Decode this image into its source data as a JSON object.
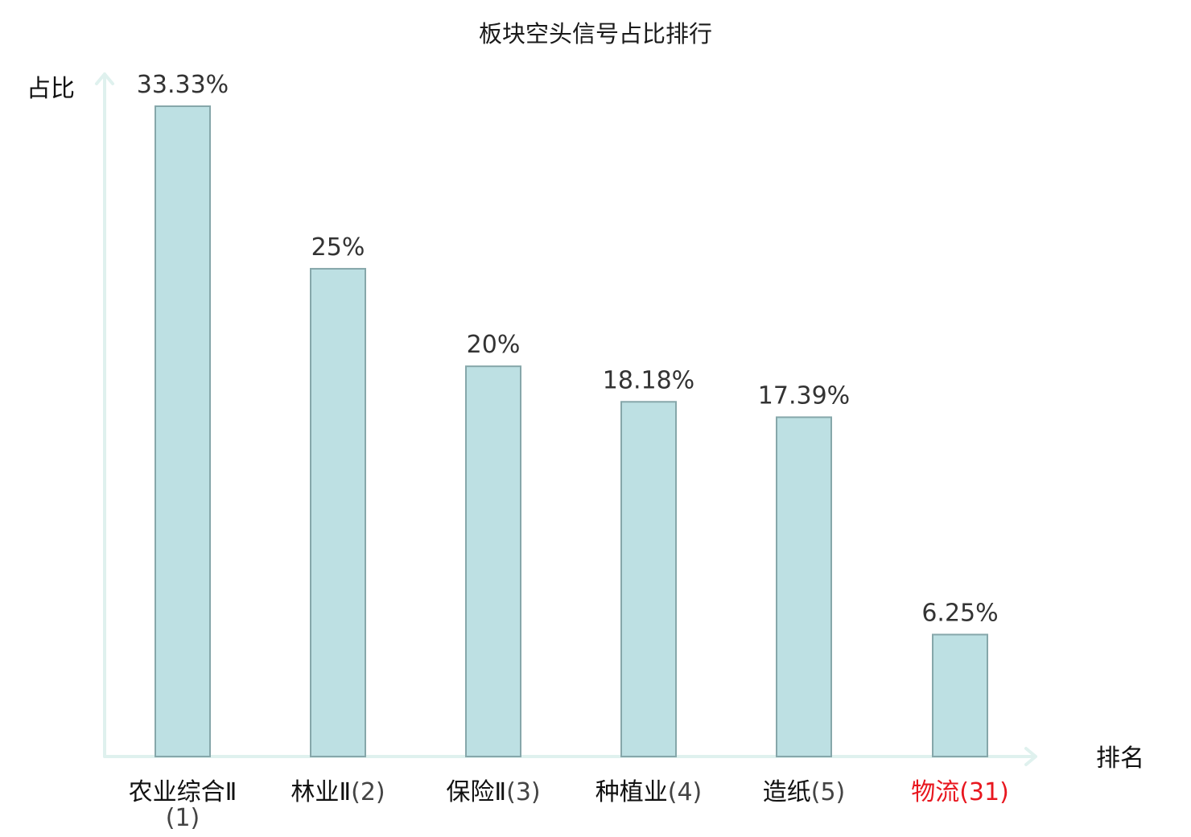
{
  "chart_data": {
    "type": "bar",
    "title": "板块空头信号占比排行",
    "ylabel": "占比",
    "xlabel": "排名",
    "ylim": [
      0,
      35
    ],
    "grid": false,
    "legend": "none",
    "categories": [
      {
        "name": "农业综合Ⅱ",
        "rank": "(1)",
        "highlight": false
      },
      {
        "name": "林业Ⅱ",
        "rank": "(2)",
        "highlight": false
      },
      {
        "name": "保险Ⅱ",
        "rank": "(3)",
        "highlight": false
      },
      {
        "name": "种植业",
        "rank": "(4)",
        "highlight": false
      },
      {
        "name": "造纸",
        "rank": "(5)",
        "highlight": false
      },
      {
        "name": "物流",
        "rank": "(31)",
        "highlight": true
      }
    ],
    "values": [
      33.33,
      25,
      20,
      18.18,
      17.39,
      6.25
    ],
    "value_labels": [
      "33.33%",
      "25%",
      "20%",
      "18.18%",
      "17.39%",
      "6.25%"
    ],
    "colors": {
      "bar_fill": "#bde0e3",
      "bar_stroke": "#86a7aa",
      "axis": "#dff1ee",
      "label": "#111111",
      "suffix": "#444444",
      "highlight": "#e8171f"
    }
  }
}
